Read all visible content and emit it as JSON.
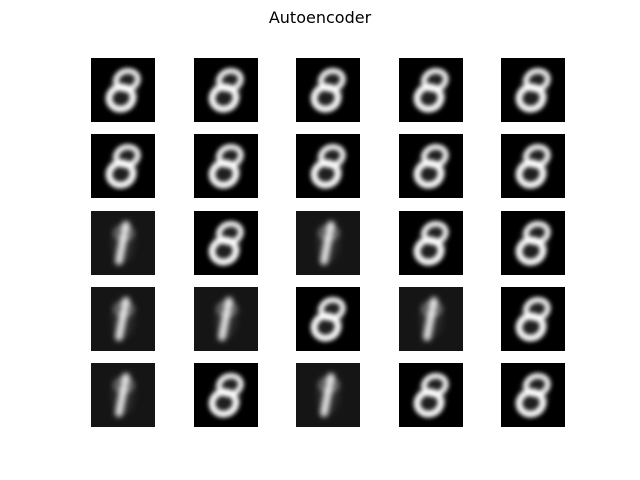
{
  "title": "Autoencoder",
  "grid": {
    "rows": 5,
    "cols": 5,
    "background_color": "#000000",
    "foreground_color": "#ffffff",
    "tiles": [
      [
        "eight",
        "eight",
        "eight",
        "eight",
        "eight"
      ],
      [
        "eight",
        "eight",
        "eight",
        "eight",
        "eight"
      ],
      [
        "one",
        "eight",
        "one",
        "eight",
        "eight"
      ],
      [
        "one",
        "one",
        "eight",
        "one",
        "eight"
      ],
      [
        "one",
        "eight",
        "one",
        "eight",
        "eight"
      ]
    ]
  }
}
